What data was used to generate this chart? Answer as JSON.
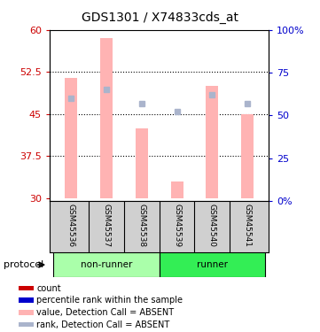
{
  "title": "GDS1301 / X74833cds_at",
  "samples": [
    "GSM45536",
    "GSM45537",
    "GSM45538",
    "GSM45539",
    "GSM45540",
    "GSM45541"
  ],
  "groups": [
    "non-runner",
    "non-runner",
    "non-runner",
    "runner",
    "runner",
    "runner"
  ],
  "bar_values": [
    51.5,
    58.5,
    42.5,
    33.0,
    50.0,
    45.0
  ],
  "rank_pct": [
    60,
    65,
    57,
    52,
    62,
    57
  ],
  "bar_bottom": 30,
  "ylim_left": [
    29.5,
    60
  ],
  "ylim_right": [
    0,
    100
  ],
  "yticks_left": [
    30,
    37.5,
    45,
    52.5,
    60
  ],
  "yticks_right": [
    0,
    25,
    50,
    75,
    100
  ],
  "bar_color": "#ffb3b3",
  "rank_color": "#aab4cc",
  "left_axis_color": "#cc0000",
  "right_axis_color": "#0000cc",
  "group_colors": {
    "non-runner": "#aaffaa",
    "runner": "#33ee55"
  },
  "labels_leg": [
    "count",
    "percentile rank within the sample",
    "value, Detection Call = ABSENT",
    "rank, Detection Call = ABSENT"
  ],
  "colors_leg": [
    "#cc0000",
    "#0000cc",
    "#ffb3b3",
    "#aab4cc"
  ],
  "protocol_label": "protocol"
}
